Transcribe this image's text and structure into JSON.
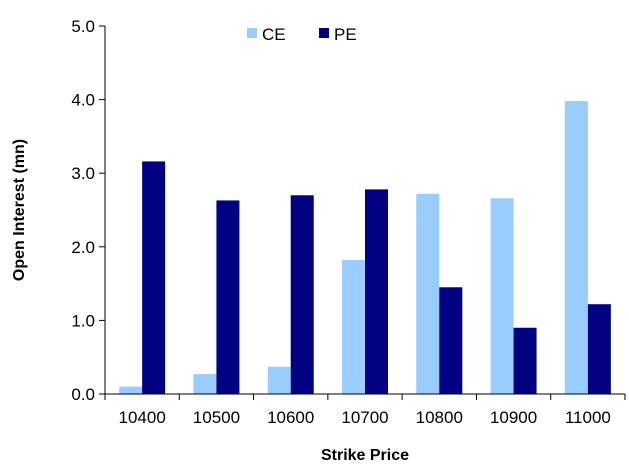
{
  "chart_data": {
    "type": "bar",
    "title": "",
    "xlabel": "Strike Price",
    "ylabel": "Open Interest (mn)",
    "categories": [
      "10400",
      "10500",
      "10600",
      "10700",
      "10800",
      "10900",
      "11000"
    ],
    "series": [
      {
        "name": "CE",
        "color": "#99ccff",
        "values": [
          0.1,
          0.27,
          0.37,
          1.82,
          2.72,
          2.66,
          3.98
        ]
      },
      {
        "name": "PE",
        "color": "#000080",
        "values": [
          3.16,
          2.63,
          2.7,
          2.78,
          1.45,
          0.9,
          1.22
        ]
      }
    ],
    "ylim": [
      0,
      5
    ],
    "yticks": [
      "0.0",
      "1.0",
      "2.0",
      "3.0",
      "4.0",
      "5.0"
    ],
    "grid": false,
    "legend_position": "top-center"
  }
}
